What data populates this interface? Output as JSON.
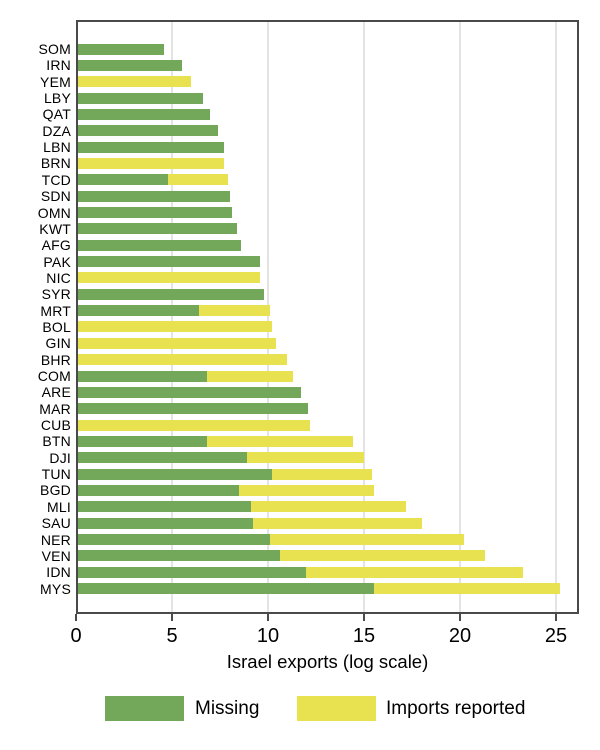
{
  "chart_data": {
    "type": "bar",
    "orientation": "horizontal",
    "stacked": true,
    "title": "",
    "xlabel": "Israel exports (log scale)",
    "ylabel": "",
    "xlim": [
      0,
      26.2
    ],
    "x_ticks": [
      0,
      5,
      10,
      15,
      20,
      25
    ],
    "grid": "vertical-gridlines-at-x-ticks",
    "legend_position": "bottom",
    "categories": [
      "SOM",
      "IRN",
      "YEM",
      "LBY",
      "QAT",
      "DZA",
      "LBN",
      "BRN",
      "TCD",
      "SDN",
      "OMN",
      "KWT",
      "AFG",
      "PAK",
      "NIC",
      "SYR",
      "MRT",
      "BOL",
      "GIN",
      "BHR",
      "COM",
      "ARE",
      "MAR",
      "CUB",
      "BTN",
      "DJI",
      "TUN",
      "BGD",
      "MLI",
      "SAU",
      "NER",
      "VEN",
      "IDN",
      "MYS"
    ],
    "series": [
      {
        "name": "Missing",
        "color": "#73a75a",
        "values": [
          4.5,
          5.4,
          0,
          6.5,
          6.9,
          7.3,
          7.6,
          0,
          4.7,
          7.9,
          8.0,
          8.3,
          8.5,
          9.5,
          0,
          9.7,
          6.3,
          0,
          0,
          0,
          6.7,
          11.6,
          12.0,
          0,
          6.7,
          8.8,
          10.1,
          8.4,
          9.0,
          9.1,
          10.0,
          10.5,
          11.9,
          15.4
        ]
      },
      {
        "name": "Imports reported",
        "color": "#e9e250",
        "values": [
          0,
          0,
          5.9,
          0,
          0,
          0,
          0,
          7.6,
          3.1,
          0,
          0,
          0,
          0,
          0,
          9.5,
          0,
          3.7,
          10.1,
          10.3,
          10.9,
          4.5,
          0,
          0,
          12.1,
          7.6,
          6.1,
          5.2,
          7.0,
          8.1,
          8.8,
          10.1,
          10.7,
          11.3,
          9.7
        ]
      }
    ],
    "totals": [
      4.5,
      5.4,
      5.9,
      6.5,
      6.9,
      7.3,
      7.6,
      7.6,
      7.8,
      7.9,
      8.0,
      8.3,
      8.5,
      9.5,
      9.5,
      9.7,
      10.0,
      10.1,
      10.3,
      10.9,
      11.2,
      11.6,
      12.0,
      12.1,
      14.3,
      14.9,
      15.3,
      15.4,
      17.1,
      17.9,
      20.1,
      21.2,
      23.2,
      25.1
    ]
  },
  "colors": {
    "missing": "#73a75a",
    "imports_reported": "#e9e250",
    "axis": "#4a4a4a",
    "gridline": "#e4e4e4",
    "background": "#ffffff"
  },
  "legend": {
    "items": [
      {
        "label": "Missing",
        "color": "#73a75a"
      },
      {
        "label": "Imports reported",
        "color": "#e9e250"
      }
    ]
  }
}
